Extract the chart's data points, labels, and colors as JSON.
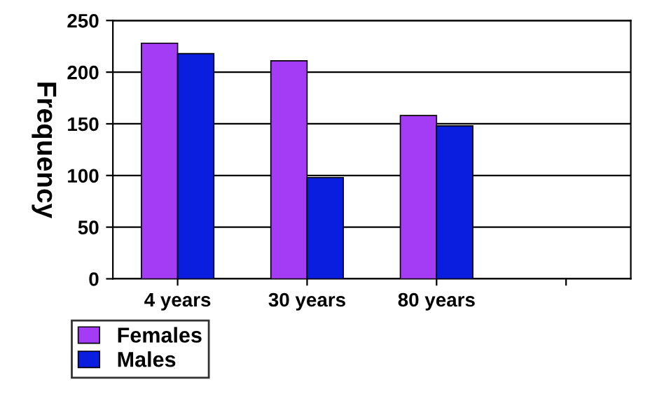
{
  "chart_data": {
    "type": "bar",
    "ylabel": "Frequency",
    "categories": [
      "4 years",
      "30 years",
      "80 years",
      null
    ],
    "series": [
      {
        "name": "Females",
        "color": "#a43cf5",
        "values": [
          228,
          211,
          158,
          null
        ]
      },
      {
        "name": "Males",
        "color": "#0a1ee0",
        "values": [
          218,
          98,
          148,
          null
        ]
      }
    ],
    "ylim": [
      0,
      250
    ],
    "yticks": [
      0,
      50,
      100,
      150,
      200,
      250
    ],
    "grid": "y",
    "legend": "bottom left"
  }
}
